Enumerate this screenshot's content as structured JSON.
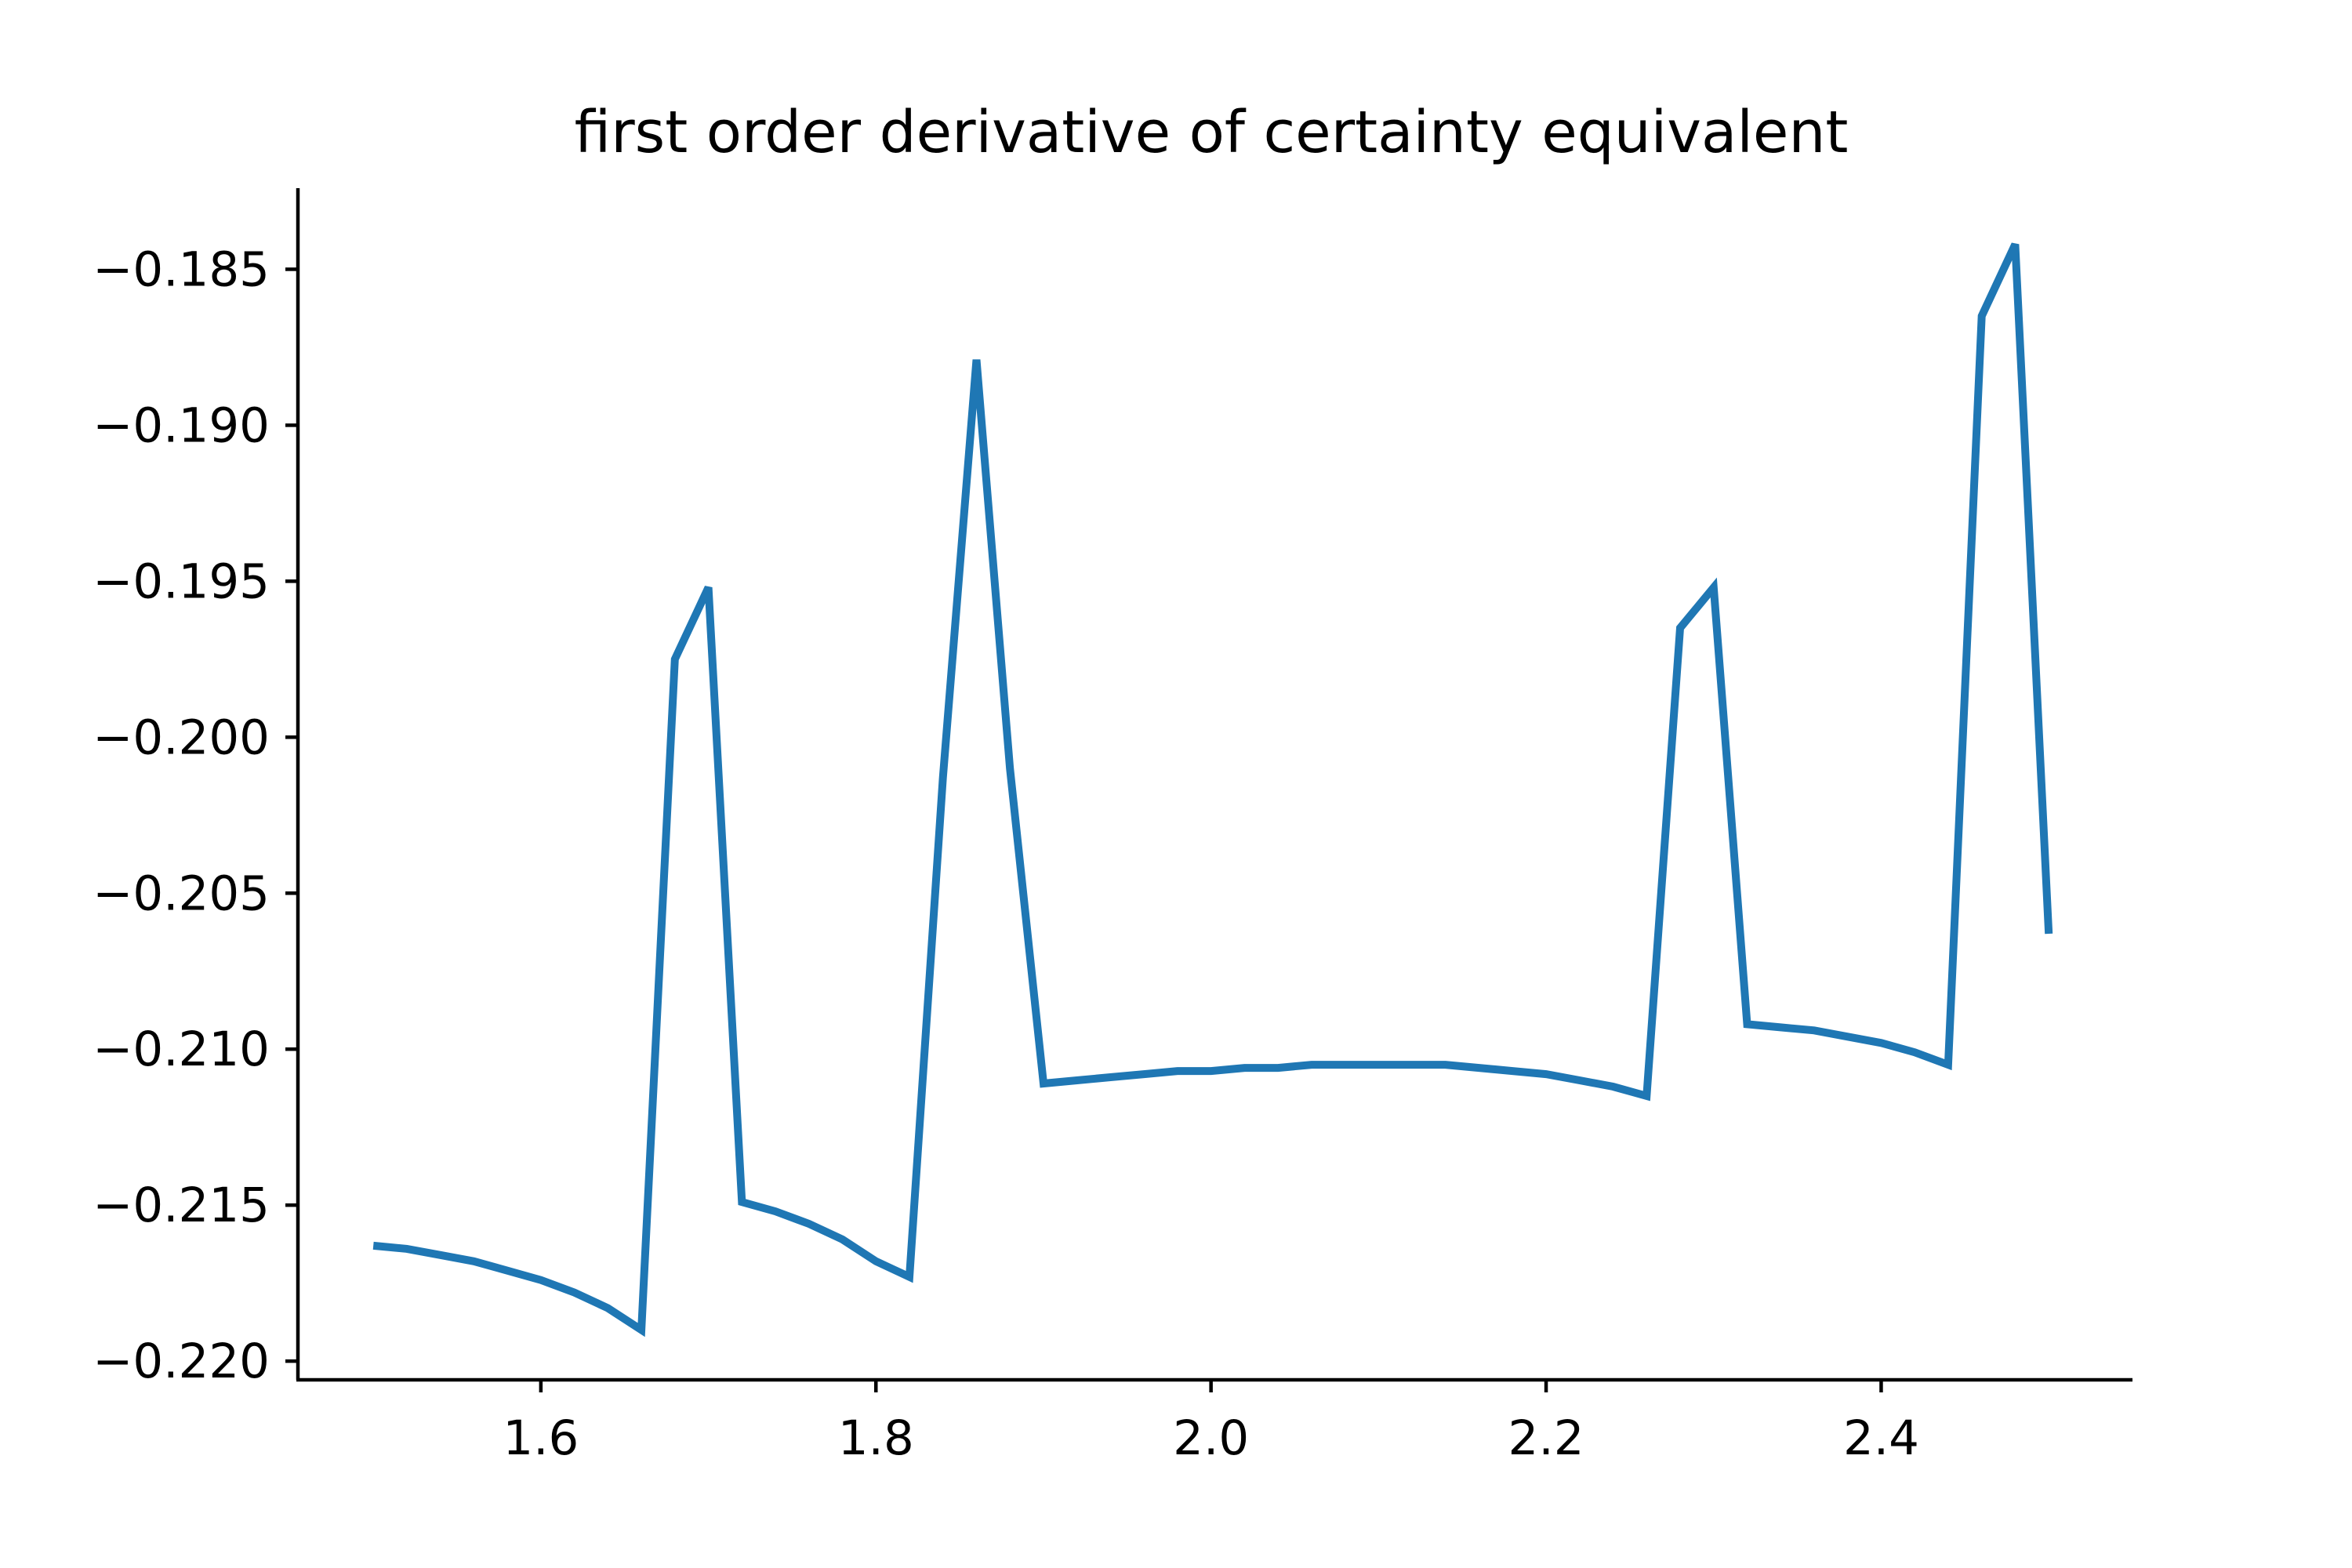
{
  "chart_data": {
    "type": "line",
    "title": "first order derivative of certainty equivalent",
    "xlabel": "",
    "ylabel": "",
    "xlim": [
      1.455,
      2.55
    ],
    "ylim": [
      -0.2206,
      -0.1824
    ],
    "grid": false,
    "x_ticks": [
      {
        "value": 1.6,
        "label": "1.6"
      },
      {
        "value": 1.8,
        "label": "1.8"
      },
      {
        "value": 2.0,
        "label": "2.0"
      },
      {
        "value": 2.2,
        "label": "2.2"
      },
      {
        "value": 2.4,
        "label": "2.4"
      }
    ],
    "y_ticks": [
      {
        "value": -0.185,
        "label": "−0.185"
      },
      {
        "value": -0.19,
        "label": "−0.190"
      },
      {
        "value": -0.195,
        "label": "−0.195"
      },
      {
        "value": -0.2,
        "label": "−0.200"
      },
      {
        "value": -0.205,
        "label": "−0.205"
      },
      {
        "value": -0.21,
        "label": "−0.210"
      },
      {
        "value": -0.215,
        "label": "−0.215"
      },
      {
        "value": -0.22,
        "label": "−0.220"
      }
    ],
    "series": [
      {
        "color": "#1f77b4",
        "x": [
          1.5,
          1.52,
          1.54,
          1.56,
          1.58,
          1.6,
          1.62,
          1.64,
          1.66,
          1.68,
          1.7,
          1.72,
          1.74,
          1.76,
          1.78,
          1.8,
          1.82,
          1.84,
          1.86,
          1.88,
          1.9,
          1.92,
          1.94,
          1.96,
          1.98,
          2.0,
          2.02,
          2.04,
          2.06,
          2.08,
          2.1,
          2.12,
          2.14,
          2.16,
          2.18,
          2.2,
          2.22,
          2.24,
          2.26,
          2.28,
          2.3,
          2.32,
          2.34,
          2.36,
          2.38,
          2.4,
          2.42,
          2.44,
          2.46,
          2.48,
          2.5
        ],
        "y": [
          -0.2163,
          -0.2164,
          -0.2166,
          -0.2168,
          -0.2171,
          -0.2174,
          -0.2178,
          -0.2183,
          -0.219,
          -0.1975,
          -0.1952,
          -0.2149,
          -0.2152,
          -0.2156,
          -0.2161,
          -0.2168,
          -0.2173,
          -0.2013,
          -0.1879,
          -0.201,
          -0.2111,
          -0.211,
          -0.2109,
          -0.2108,
          -0.2107,
          -0.2107,
          -0.2106,
          -0.2106,
          -0.2105,
          -0.2105,
          -0.2105,
          -0.2105,
          -0.2105,
          -0.2106,
          -0.2107,
          -0.2108,
          -0.211,
          -0.2112,
          -0.2115,
          -0.1965,
          -0.1952,
          -0.2092,
          -0.2093,
          -0.2094,
          -0.2096,
          -0.2098,
          -0.2101,
          -0.2105,
          -0.1865,
          -0.1842,
          -0.2063
        ]
      }
    ]
  }
}
